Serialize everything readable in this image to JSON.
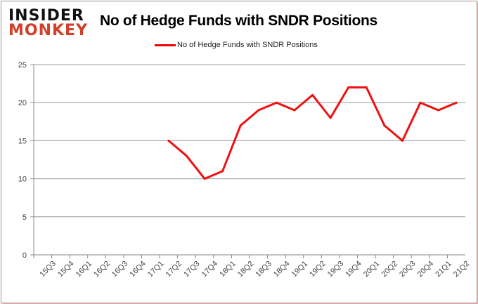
{
  "logo": {
    "line1": "INSIDER",
    "line2": "MONKEY"
  },
  "chart_data": {
    "type": "line",
    "title": "No of Hedge Funds with SNDR Positions",
    "legend": {
      "entries": [
        "No of Hedge Funds with SNDR Positions"
      ],
      "placement": "top"
    },
    "categories": [
      "15Q3",
      "15Q4",
      "16Q1",
      "16Q2",
      "16Q3",
      "16Q4",
      "17Q1",
      "17Q2",
      "17Q3",
      "17Q4",
      "18Q1",
      "18Q2",
      "18Q3",
      "18Q4",
      "19Q1",
      "19Q2",
      "19Q3",
      "19Q4",
      "20Q1",
      "20Q2",
      "20Q3",
      "20Q4",
      "21Q1",
      "21Q2"
    ],
    "series": [
      {
        "name": "No of Hedge Funds with SNDR Positions",
        "color": "#ee1111",
        "values": [
          null,
          null,
          null,
          null,
          null,
          null,
          null,
          15,
          13,
          10,
          11,
          17,
          19,
          20,
          19,
          21,
          18,
          22,
          22,
          17,
          15,
          20,
          19,
          20
        ]
      }
    ],
    "yticks": [
      0,
      5,
      10,
      15,
      20,
      25
    ],
    "ylim": [
      0,
      25
    ],
    "grid": true,
    "xlabel": "",
    "ylabel": ""
  }
}
